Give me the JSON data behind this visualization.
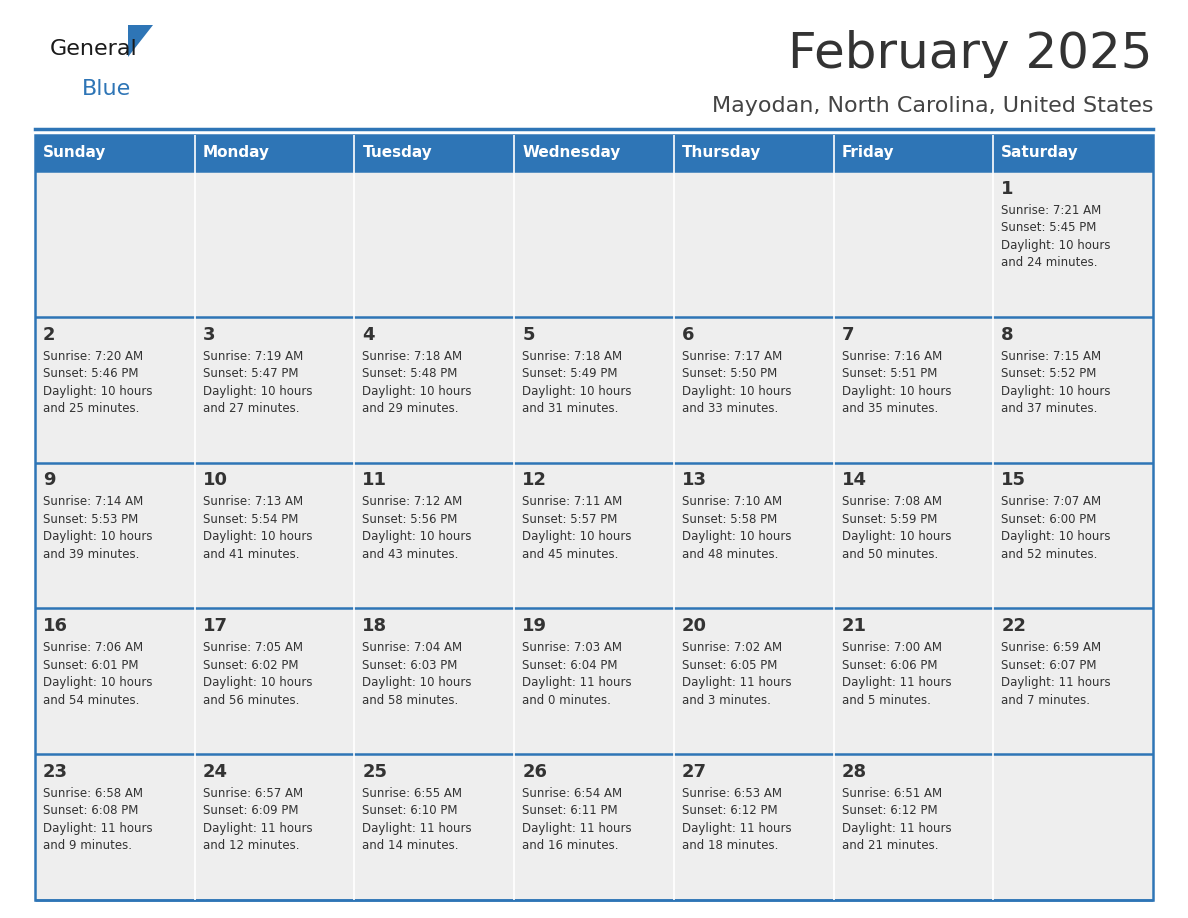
{
  "title": "February 2025",
  "subtitle": "Mayodan, North Carolina, United States",
  "days_of_week": [
    "Sunday",
    "Monday",
    "Tuesday",
    "Wednesday",
    "Thursday",
    "Friday",
    "Saturday"
  ],
  "header_bg": "#2E75B6",
  "header_text_color": "#FFFFFF",
  "cell_bg": "#EEEEEE",
  "separator_color": "#2E75B6",
  "day_number_color": "#333333",
  "cell_text_color": "#333333",
  "title_color": "#333333",
  "subtitle_color": "#444444",
  "logo_general_color": "#1a1a1a",
  "logo_blue_color": "#2E75B6",
  "logo_triangle_color": "#2E75B6",
  "weeks": [
    [
      {
        "day": null,
        "info": null
      },
      {
        "day": null,
        "info": null
      },
      {
        "day": null,
        "info": null
      },
      {
        "day": null,
        "info": null
      },
      {
        "day": null,
        "info": null
      },
      {
        "day": null,
        "info": null
      },
      {
        "day": 1,
        "info": "Sunrise: 7:21 AM\nSunset: 5:45 PM\nDaylight: 10 hours\nand 24 minutes."
      }
    ],
    [
      {
        "day": 2,
        "info": "Sunrise: 7:20 AM\nSunset: 5:46 PM\nDaylight: 10 hours\nand 25 minutes."
      },
      {
        "day": 3,
        "info": "Sunrise: 7:19 AM\nSunset: 5:47 PM\nDaylight: 10 hours\nand 27 minutes."
      },
      {
        "day": 4,
        "info": "Sunrise: 7:18 AM\nSunset: 5:48 PM\nDaylight: 10 hours\nand 29 minutes."
      },
      {
        "day": 5,
        "info": "Sunrise: 7:18 AM\nSunset: 5:49 PM\nDaylight: 10 hours\nand 31 minutes."
      },
      {
        "day": 6,
        "info": "Sunrise: 7:17 AM\nSunset: 5:50 PM\nDaylight: 10 hours\nand 33 minutes."
      },
      {
        "day": 7,
        "info": "Sunrise: 7:16 AM\nSunset: 5:51 PM\nDaylight: 10 hours\nand 35 minutes."
      },
      {
        "day": 8,
        "info": "Sunrise: 7:15 AM\nSunset: 5:52 PM\nDaylight: 10 hours\nand 37 minutes."
      }
    ],
    [
      {
        "day": 9,
        "info": "Sunrise: 7:14 AM\nSunset: 5:53 PM\nDaylight: 10 hours\nand 39 minutes."
      },
      {
        "day": 10,
        "info": "Sunrise: 7:13 AM\nSunset: 5:54 PM\nDaylight: 10 hours\nand 41 minutes."
      },
      {
        "day": 11,
        "info": "Sunrise: 7:12 AM\nSunset: 5:56 PM\nDaylight: 10 hours\nand 43 minutes."
      },
      {
        "day": 12,
        "info": "Sunrise: 7:11 AM\nSunset: 5:57 PM\nDaylight: 10 hours\nand 45 minutes."
      },
      {
        "day": 13,
        "info": "Sunrise: 7:10 AM\nSunset: 5:58 PM\nDaylight: 10 hours\nand 48 minutes."
      },
      {
        "day": 14,
        "info": "Sunrise: 7:08 AM\nSunset: 5:59 PM\nDaylight: 10 hours\nand 50 minutes."
      },
      {
        "day": 15,
        "info": "Sunrise: 7:07 AM\nSunset: 6:00 PM\nDaylight: 10 hours\nand 52 minutes."
      }
    ],
    [
      {
        "day": 16,
        "info": "Sunrise: 7:06 AM\nSunset: 6:01 PM\nDaylight: 10 hours\nand 54 minutes."
      },
      {
        "day": 17,
        "info": "Sunrise: 7:05 AM\nSunset: 6:02 PM\nDaylight: 10 hours\nand 56 minutes."
      },
      {
        "day": 18,
        "info": "Sunrise: 7:04 AM\nSunset: 6:03 PM\nDaylight: 10 hours\nand 58 minutes."
      },
      {
        "day": 19,
        "info": "Sunrise: 7:03 AM\nSunset: 6:04 PM\nDaylight: 11 hours\nand 0 minutes."
      },
      {
        "day": 20,
        "info": "Sunrise: 7:02 AM\nSunset: 6:05 PM\nDaylight: 11 hours\nand 3 minutes."
      },
      {
        "day": 21,
        "info": "Sunrise: 7:00 AM\nSunset: 6:06 PM\nDaylight: 11 hours\nand 5 minutes."
      },
      {
        "day": 22,
        "info": "Sunrise: 6:59 AM\nSunset: 6:07 PM\nDaylight: 11 hours\nand 7 minutes."
      }
    ],
    [
      {
        "day": 23,
        "info": "Sunrise: 6:58 AM\nSunset: 6:08 PM\nDaylight: 11 hours\nand 9 minutes."
      },
      {
        "day": 24,
        "info": "Sunrise: 6:57 AM\nSunset: 6:09 PM\nDaylight: 11 hours\nand 12 minutes."
      },
      {
        "day": 25,
        "info": "Sunrise: 6:55 AM\nSunset: 6:10 PM\nDaylight: 11 hours\nand 14 minutes."
      },
      {
        "day": 26,
        "info": "Sunrise: 6:54 AM\nSunset: 6:11 PM\nDaylight: 11 hours\nand 16 minutes."
      },
      {
        "day": 27,
        "info": "Sunrise: 6:53 AM\nSunset: 6:12 PM\nDaylight: 11 hours\nand 18 minutes."
      },
      {
        "day": 28,
        "info": "Sunrise: 6:51 AM\nSunset: 6:12 PM\nDaylight: 11 hours\nand 21 minutes."
      },
      {
        "day": null,
        "info": null
      }
    ]
  ]
}
